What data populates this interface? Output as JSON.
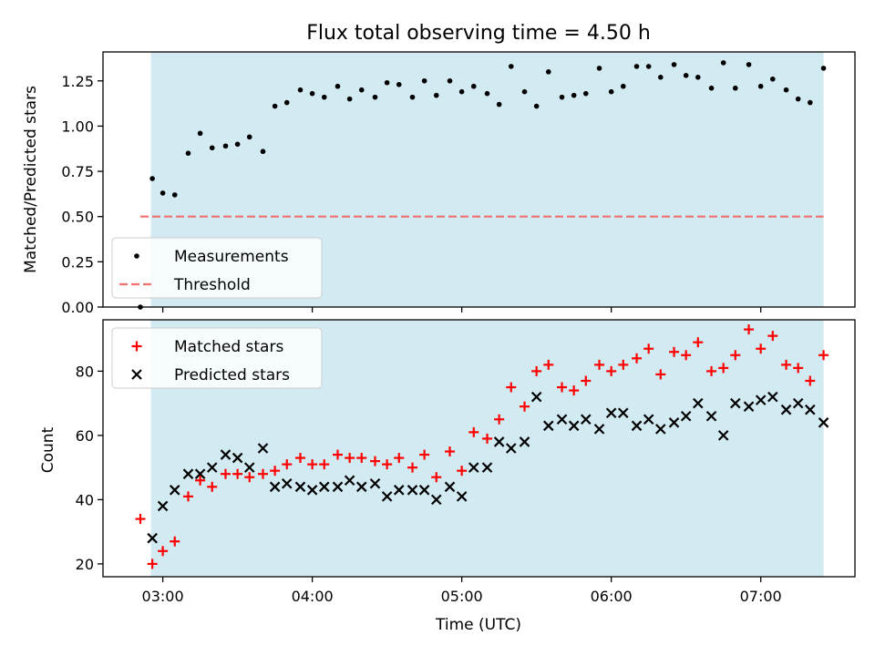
{
  "chart_data": [
    {
      "type": "scatter",
      "title": "Flux total observing time = 4.50 h",
      "ylabel": "Matched/Predicted stars",
      "xlabel": "",
      "x_unit": "hours UTC",
      "xlim": [
        2.6,
        7.63
      ],
      "ylim": [
        0.0,
        1.41
      ],
      "x_ticks": [
        3,
        4,
        5,
        6,
        7
      ],
      "y_ticks": [
        0.0,
        0.25,
        0.5,
        0.75,
        1.0,
        1.25
      ],
      "y_tick_labels": [
        "0.00",
        "0.25",
        "0.50",
        "0.75",
        "1.00",
        "1.25"
      ],
      "shaded_span": [
        2.92,
        7.42
      ],
      "shade_color": "#add8e6",
      "legend_position": "lower-left",
      "series": [
        {
          "name": "Measurements",
          "marker": "dot",
          "color": "#000000",
          "points": [
            [
              2.85,
              0.0
            ],
            [
              2.93,
              0.71
            ],
            [
              3.0,
              0.63
            ],
            [
              3.08,
              0.62
            ],
            [
              3.17,
              0.85
            ],
            [
              3.25,
              0.96
            ],
            [
              3.33,
              0.88
            ],
            [
              3.42,
              0.89
            ],
            [
              3.5,
              0.9
            ],
            [
              3.58,
              0.94
            ],
            [
              3.67,
              0.86
            ],
            [
              3.75,
              1.11
            ],
            [
              3.83,
              1.13
            ],
            [
              3.92,
              1.2
            ],
            [
              4.0,
              1.18
            ],
            [
              4.08,
              1.16
            ],
            [
              4.17,
              1.22
            ],
            [
              4.25,
              1.15
            ],
            [
              4.33,
              1.2
            ],
            [
              4.42,
              1.16
            ],
            [
              4.5,
              1.24
            ],
            [
              4.58,
              1.23
            ],
            [
              4.67,
              1.16
            ],
            [
              4.75,
              1.25
            ],
            [
              4.83,
              1.17
            ],
            [
              4.92,
              1.25
            ],
            [
              5.0,
              1.19
            ],
            [
              5.08,
              1.22
            ],
            [
              5.17,
              1.18
            ],
            [
              5.25,
              1.12
            ],
            [
              5.33,
              1.33
            ],
            [
              5.42,
              1.19
            ],
            [
              5.5,
              1.11
            ],
            [
              5.58,
              1.3
            ],
            [
              5.67,
              1.16
            ],
            [
              5.75,
              1.17
            ],
            [
              5.83,
              1.18
            ],
            [
              5.92,
              1.32
            ],
            [
              6.0,
              1.19
            ],
            [
              6.08,
              1.22
            ],
            [
              6.17,
              1.33
            ],
            [
              6.25,
              1.33
            ],
            [
              6.33,
              1.27
            ],
            [
              6.42,
              1.34
            ],
            [
              6.5,
              1.28
            ],
            [
              6.58,
              1.27
            ],
            [
              6.67,
              1.21
            ],
            [
              6.75,
              1.35
            ],
            [
              6.83,
              1.21
            ],
            [
              6.92,
              1.34
            ],
            [
              7.0,
              1.22
            ],
            [
              7.08,
              1.26
            ],
            [
              7.17,
              1.2
            ],
            [
              7.25,
              1.15
            ],
            [
              7.33,
              1.13
            ],
            [
              7.42,
              1.32
            ]
          ]
        },
        {
          "name": "Threshold",
          "type": "line",
          "style": "dashed",
          "color": "#f07070",
          "x": [
            2.85,
            7.42
          ],
          "y": [
            0.5,
            0.5
          ]
        }
      ]
    },
    {
      "type": "scatter",
      "title": "",
      "ylabel": "Count",
      "xlabel": "Time (UTC)",
      "x_unit": "hours UTC",
      "xlim": [
        2.6,
        7.63
      ],
      "ylim": [
        16.0,
        96.0
      ],
      "x_ticks": [
        3,
        4,
        5,
        6,
        7
      ],
      "x_tick_labels": [
        "03:00",
        "04:00",
        "05:00",
        "06:00",
        "07:00"
      ],
      "y_ticks": [
        20,
        40,
        60,
        80
      ],
      "y_tick_labels": [
        "20",
        "40",
        "60",
        "80"
      ],
      "shaded_span": [
        2.92,
        7.42
      ],
      "shade_color": "#add8e6",
      "legend_position": "top-left",
      "series": [
        {
          "name": "Matched stars",
          "marker": "plus",
          "color": "#ff0000",
          "points": [
            [
              2.85,
              34
            ],
            [
              2.93,
              20
            ],
            [
              3.0,
              24
            ],
            [
              3.08,
              27
            ],
            [
              3.17,
              41
            ],
            [
              3.25,
              46
            ],
            [
              3.33,
              44
            ],
            [
              3.42,
              48
            ],
            [
              3.5,
              48
            ],
            [
              3.58,
              47
            ],
            [
              3.67,
              48
            ],
            [
              3.75,
              49
            ],
            [
              3.83,
              51
            ],
            [
              3.92,
              53
            ],
            [
              4.0,
              51
            ],
            [
              4.08,
              51
            ],
            [
              4.17,
              54
            ],
            [
              4.25,
              53
            ],
            [
              4.33,
              53
            ],
            [
              4.42,
              52
            ],
            [
              4.5,
              51
            ],
            [
              4.58,
              53
            ],
            [
              4.67,
              50
            ],
            [
              4.75,
              54
            ],
            [
              4.83,
              47
            ],
            [
              4.92,
              55
            ],
            [
              5.0,
              49
            ],
            [
              5.08,
              61
            ],
            [
              5.17,
              59
            ],
            [
              5.25,
              65
            ],
            [
              5.33,
              75
            ],
            [
              5.42,
              69
            ],
            [
              5.5,
              80
            ],
            [
              5.58,
              82
            ],
            [
              5.67,
              75
            ],
            [
              5.75,
              74
            ],
            [
              5.83,
              77
            ],
            [
              5.92,
              82
            ],
            [
              6.0,
              80
            ],
            [
              6.08,
              82
            ],
            [
              6.17,
              84
            ],
            [
              6.25,
              87
            ],
            [
              6.33,
              79
            ],
            [
              6.42,
              86
            ],
            [
              6.5,
              85
            ],
            [
              6.58,
              89
            ],
            [
              6.67,
              80
            ],
            [
              6.75,
              81
            ],
            [
              6.83,
              85
            ],
            [
              6.92,
              93
            ],
            [
              7.0,
              87
            ],
            [
              7.08,
              91
            ],
            [
              7.17,
              82
            ],
            [
              7.25,
              81
            ],
            [
              7.33,
              77
            ],
            [
              7.42,
              85
            ]
          ]
        },
        {
          "name": "Predicted stars",
          "marker": "x",
          "color": "#000000",
          "points": [
            [
              2.93,
              28
            ],
            [
              3.0,
              38
            ],
            [
              3.08,
              43
            ],
            [
              3.17,
              48
            ],
            [
              3.25,
              48
            ],
            [
              3.33,
              50
            ],
            [
              3.42,
              54
            ],
            [
              3.5,
              53
            ],
            [
              3.58,
              50
            ],
            [
              3.67,
              56
            ],
            [
              3.75,
              44
            ],
            [
              3.83,
              45
            ],
            [
              3.92,
              44
            ],
            [
              4.0,
              43
            ],
            [
              4.08,
              44
            ],
            [
              4.17,
              44
            ],
            [
              4.25,
              46
            ],
            [
              4.33,
              44
            ],
            [
              4.42,
              45
            ],
            [
              4.5,
              41
            ],
            [
              4.58,
              43
            ],
            [
              4.67,
              43
            ],
            [
              4.75,
              43
            ],
            [
              4.83,
              40
            ],
            [
              4.92,
              44
            ],
            [
              5.0,
              41
            ],
            [
              5.08,
              50
            ],
            [
              5.17,
              50
            ],
            [
              5.25,
              58
            ],
            [
              5.33,
              56
            ],
            [
              5.42,
              58
            ],
            [
              5.5,
              72
            ],
            [
              5.58,
              63
            ],
            [
              5.67,
              65
            ],
            [
              5.75,
              63
            ],
            [
              5.83,
              65
            ],
            [
              5.92,
              62
            ],
            [
              6.0,
              67
            ],
            [
              6.08,
              67
            ],
            [
              6.17,
              63
            ],
            [
              6.25,
              65
            ],
            [
              6.33,
              62
            ],
            [
              6.42,
              64
            ],
            [
              6.5,
              66
            ],
            [
              6.58,
              70
            ],
            [
              6.67,
              66
            ],
            [
              6.75,
              60
            ],
            [
              6.83,
              70
            ],
            [
              6.92,
              69
            ],
            [
              7.0,
              71
            ],
            [
              7.08,
              72
            ],
            [
              7.17,
              68
            ],
            [
              7.25,
              70
            ],
            [
              7.33,
              68
            ],
            [
              7.42,
              64
            ]
          ]
        }
      ]
    }
  ]
}
